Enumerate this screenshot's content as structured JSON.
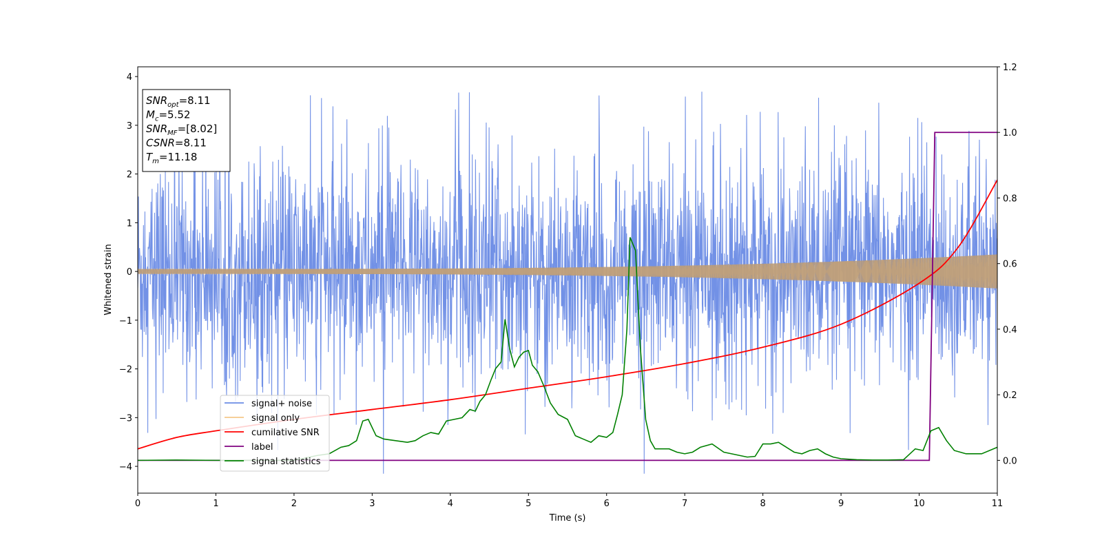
{
  "chart_data": {
    "type": "line",
    "xlabel": "Time (s)",
    "ylabel": "Whitened strain",
    "xlim": [
      0,
      11
    ],
    "ylim_left": [
      -4.55,
      4.2
    ],
    "ylim_right": [
      -0.1,
      1.2
    ],
    "x_ticks": [
      0,
      1,
      2,
      3,
      4,
      5,
      6,
      7,
      8,
      9,
      10,
      11
    ],
    "y_left_ticks": [
      -4,
      -3,
      -2,
      -1,
      0,
      1,
      2,
      3,
      4
    ],
    "y_right_ticks": [
      0.0,
      0.2,
      0.4,
      0.6,
      0.8,
      1.0,
      1.2
    ],
    "grid": false,
    "legend_position": "lower-left",
    "info_box": {
      "position": "top-left",
      "lines": [
        {
          "name": "SNR",
          "sub": "opt",
          "value": "=8.11"
        },
        {
          "name": "M",
          "sub": "c",
          "value": "=5.52"
        },
        {
          "name": "SNR",
          "sub": "MF",
          "value": "=[8.02]"
        },
        {
          "name": "CSNR",
          "sub": "",
          "value": "=8.11"
        },
        {
          "name": "T",
          "sub": "m",
          "value": "=11.18"
        }
      ]
    },
    "series": [
      {
        "name": "signal+ noise",
        "color": "#6a8be5",
        "axis": "left",
        "kind": "noise",
        "envelope_typical": 2.3,
        "envelope_peak_max": 3.8,
        "envelope_peak_min": -4.15
      },
      {
        "name": "signal only",
        "color": "#f5c88a",
        "axis": "left",
        "kind": "chirp",
        "amplitude_start": 0.05,
        "amplitude_end": 0.35
      },
      {
        "name": "cumilative SNR",
        "color": "#ff0000",
        "axis": "right",
        "x": [
          0,
          0.5,
          1,
          2,
          3,
          4,
          5,
          6,
          7,
          8,
          9,
          10,
          10.5,
          11
        ],
        "y": [
          0.035,
          0.07,
          0.09,
          0.125,
          0.155,
          0.185,
          0.22,
          0.255,
          0.295,
          0.345,
          0.415,
          0.54,
          0.65,
          0.855
        ]
      },
      {
        "name": "label",
        "color": "#800080",
        "axis": "right",
        "x": [
          0,
          10.13,
          10.2,
          11
        ],
        "y": [
          0.0,
          0.0,
          1.0,
          1.0
        ]
      },
      {
        "name": "signal statistics",
        "color": "#008000",
        "axis": "right",
        "x": [
          0,
          0.5,
          1.0,
          1.5,
          2.0,
          2.3,
          2.45,
          2.6,
          2.7,
          2.8,
          2.88,
          2.95,
          3.05,
          3.15,
          3.3,
          3.45,
          3.55,
          3.65,
          3.75,
          3.85,
          3.95,
          4.05,
          4.15,
          4.25,
          4.32,
          4.38,
          4.45,
          4.52,
          4.58,
          4.65,
          4.7,
          4.76,
          4.82,
          4.88,
          4.94,
          5.0,
          5.05,
          5.12,
          5.2,
          5.28,
          5.38,
          5.5,
          5.6,
          5.7,
          5.8,
          5.9,
          6.0,
          6.08,
          6.14,
          6.2,
          6.26,
          6.3,
          6.37,
          6.43,
          6.5,
          6.56,
          6.62,
          6.7,
          6.8,
          6.9,
          7.0,
          7.1,
          7.2,
          7.35,
          7.5,
          7.6,
          7.7,
          7.8,
          7.9,
          8.0,
          8.1,
          8.2,
          8.3,
          8.4,
          8.5,
          8.6,
          8.7,
          8.8,
          8.9,
          9.0,
          9.2,
          9.4,
          9.6,
          9.8,
          9.95,
          10.05,
          10.15,
          10.25,
          10.35,
          10.45,
          10.6,
          10.8,
          11.0
        ],
        "y": [
          0.0,
          0.001,
          0.0,
          0.0,
          0.0,
          0.015,
          0.02,
          0.04,
          0.045,
          0.06,
          0.12,
          0.125,
          0.075,
          0.065,
          0.06,
          0.055,
          0.06,
          0.075,
          0.085,
          0.08,
          0.12,
          0.125,
          0.13,
          0.155,
          0.15,
          0.18,
          0.2,
          0.245,
          0.28,
          0.3,
          0.43,
          0.34,
          0.285,
          0.315,
          0.33,
          0.335,
          0.29,
          0.27,
          0.225,
          0.175,
          0.14,
          0.125,
          0.075,
          0.065,
          0.055,
          0.075,
          0.07,
          0.085,
          0.14,
          0.2,
          0.4,
          0.68,
          0.64,
          0.35,
          0.125,
          0.06,
          0.035,
          0.035,
          0.035,
          0.025,
          0.02,
          0.025,
          0.04,
          0.05,
          0.025,
          0.02,
          0.015,
          0.01,
          0.012,
          0.05,
          0.05,
          0.055,
          0.04,
          0.025,
          0.02,
          0.03,
          0.035,
          0.02,
          0.01,
          0.005,
          0.002,
          0.001,
          0.001,
          0.002,
          0.035,
          0.03,
          0.09,
          0.1,
          0.06,
          0.03,
          0.02,
          0.02,
          0.04
        ]
      }
    ]
  }
}
